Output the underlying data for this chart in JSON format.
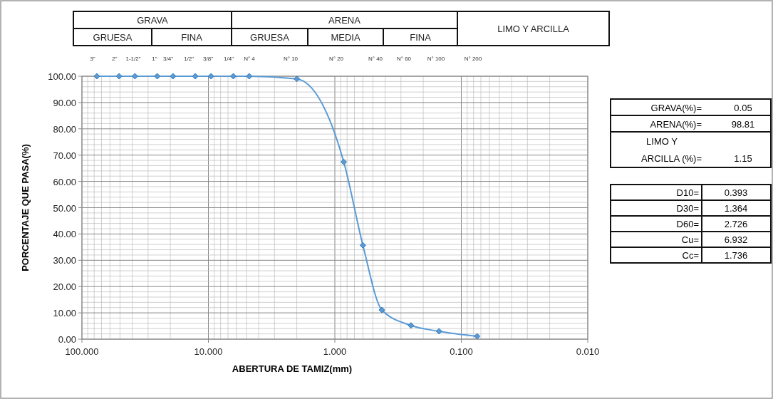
{
  "chart_data": {
    "type": "line",
    "xlabel": "ABERTURA DE TAMIZ(mm)",
    "ylabel": "PORCENTAJE QUE PASA(%)",
    "x": [
      76.2,
      50.8,
      38.1,
      25.4,
      19.05,
      12.7,
      9.525,
      6.35,
      4.76,
      2.0,
      0.85,
      0.6,
      0.425,
      0.25,
      0.15,
      0.075
    ],
    "series": [
      {
        "color": "#5b9bd5",
        "values": [
          100,
          100,
          100,
          100,
          100,
          100,
          100,
          100,
          100,
          99,
          67.4,
          35.7,
          11.1,
          5.2,
          3.0,
          1.1
        ]
      }
    ],
    "log": "x",
    "marker": "diamond",
    "line_style": "solid",
    "grid": true,
    "xlim": [
      100,
      0.01
    ],
    "xticks": [
      {
        "value": 100,
        "label": "100.000"
      },
      {
        "value": 10,
        "label": "10.000"
      },
      {
        "value": 1,
        "label": "1.000"
      },
      {
        "value": 0.1,
        "label": "0.100"
      },
      {
        "value": 0.01,
        "label": "0.010"
      }
    ],
    "ylim": [
      0,
      100
    ],
    "yticks": [
      {
        "value": 0,
        "label": "0.00"
      },
      {
        "value": 10,
        "label": "10.00"
      },
      {
        "value": 20,
        "label": "20.00"
      },
      {
        "value": 30,
        "label": "30.00"
      },
      {
        "value": 40,
        "label": "40.00"
      },
      {
        "value": 50,
        "label": "50.00"
      },
      {
        "value": 60,
        "label": "60.00"
      },
      {
        "value": 70,
        "label": "70.00"
      },
      {
        "value": 80,
        "label": "80.00"
      },
      {
        "value": 90,
        "label": "90.00"
      },
      {
        "value": 100,
        "label": "100.00"
      }
    ],
    "annotations": [
      "GRAVA",
      "ARENA",
      "LIMO Y ARCILLA",
      "GRUESA",
      "FINA",
      "GRUESA",
      "MEDIA",
      "FINA",
      "GRAVA(%)=",
      "0.05",
      "ARENA(%)=",
      "98.81",
      "LIMO Y",
      "ARCILLA (%)=",
      "1.15",
      "D10=",
      "0.393",
      "D30=",
      "1.364",
      "D60=",
      "2.726",
      "Cu=",
      "6.932",
      "Cc=",
      "1.736",
      "3\"",
      "2\"",
      "1-1/2\"",
      "1\"",
      "3/4\"",
      "1/2\"",
      "3/8\"",
      "1/4\"",
      "N° 4",
      "N° 10",
      "N° 20",
      "N° 40",
      "N° 60",
      "N° 100",
      "N° 200"
    ]
  }
}
